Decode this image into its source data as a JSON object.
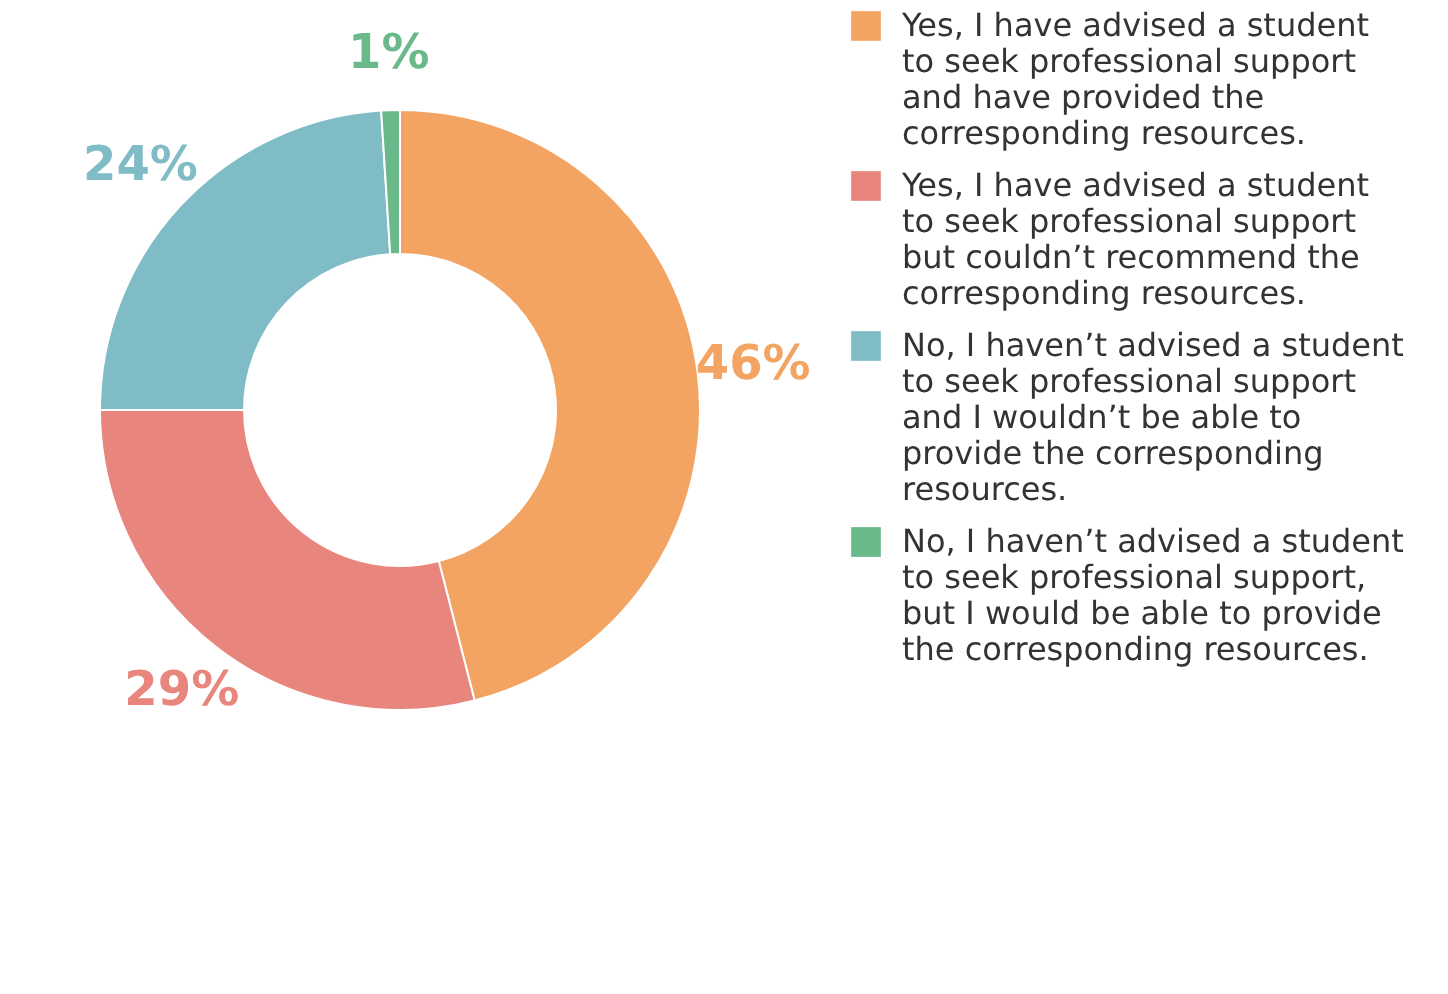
{
  "chart_data": {
    "type": "donut",
    "categories": [
      "Yes, I have advised a student to seek professional support and have provided the corresponding resources.",
      "Yes, I have advised a student to seek professional support but couldn’t recommend the corresponding resources.",
      "No, I haven’t advised a student to seek professional support and I wouldn’t be able to provide the corresponding resources.",
      "No, I haven’t advised a student to seek professional support, but I would be able to provide the corresponding resources."
    ],
    "values": [
      46,
      29,
      24,
      1
    ],
    "value_labels": [
      "46%",
      "29%",
      "24%",
      "1%"
    ],
    "colors": [
      "#f4a462",
      "#e8857c",
      "#7fbcc6",
      "#6ab98a"
    ],
    "legend": "right"
  }
}
